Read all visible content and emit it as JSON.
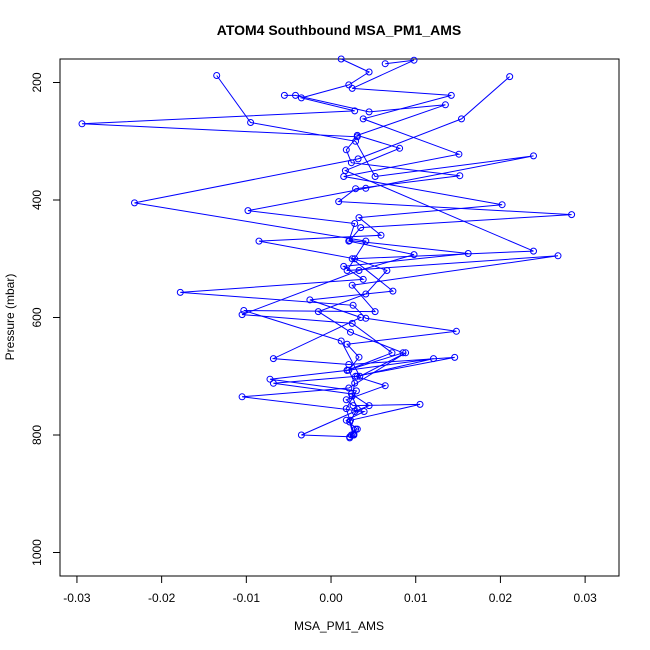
{
  "chart_data": {
    "type": "line",
    "title": "ATOM4 Southbound MSA_PM1_AMS",
    "xlabel": "MSA_PM1_AMS",
    "ylabel": "Pressure (mbar)",
    "xlim": [
      -0.032,
      0.034
    ],
    "ylim": [
      1040,
      160
    ],
    "y_inverted": true,
    "grid": false,
    "legend": "none",
    "x_ticks": [
      -0.03,
      -0.02,
      -0.01,
      0.0,
      0.01,
      0.02,
      0.03
    ],
    "x_tick_labels": [
      "-0.03",
      "-0.02",
      "-0.01",
      "0.00",
      "0.01",
      "0.02",
      "0.03"
    ],
    "y_ticks": [
      200,
      400,
      600,
      800,
      1000
    ],
    "y_tick_labels": [
      "200",
      "400",
      "600",
      "800",
      "1000"
    ],
    "marker": "open-circle",
    "line_color": "#0000ff",
    "series": [
      {
        "x": [
          0.0012,
          0.0045,
          0.0021,
          -0.0035,
          0.0028,
          -0.0294,
          0.0031,
          0.0018,
          0.0024,
          0.0152,
          0.0029,
          0.0009,
          0.0284,
          0.0035,
          0.0022,
          0.0162,
          0.0015,
          0.0038,
          -0.0178,
          0.0026,
          0.0041,
          0.0148,
          0.0019,
          0.0033,
          0.0021,
          0.0028,
          0.0025,
          0.0031,
          0.0022,
          0.0026
        ]
      },
      {
        "x": [
          0.0211,
          0.0154,
          0.0032,
          -0.0232,
          0.0041,
          0.0019,
          0.0268,
          0.0025,
          0.0052,
          -0.0103,
          0.0012,
          0.0034,
          0.0088,
          0.0021,
          -0.0105,
          0.0039,
          0.0018,
          0.0031,
          0.0024,
          0.0029,
          0.0022,
          0.0027
        ],
        "y": [
          190,
          262,
          330,
          405,
          470,
          520,
          495,
          545,
          590,
          588,
          640,
          700,
          660,
          720,
          735,
          760,
          775,
          790,
          800,
          790,
          805,
          800
        ]
      },
      {
        "x": [
          -0.0135,
          -0.0095,
          0.0029,
          0.0052,
          0.0239,
          0.0041,
          -0.0098,
          0.0028,
          0.0021,
          0.0098,
          0.0033,
          -0.0105,
          0.0025,
          0.0072,
          0.0019,
          0.0121,
          0.0031,
          -0.0068,
          0.0024,
          0.0045,
          0.0028,
          -0.0035,
          0.0022
        ],
        "y": [
          188,
          268,
          300,
          360,
          325,
          380,
          418,
          440,
          470,
          493,
          520,
          595,
          610,
          660,
          690,
          670,
          700,
          712,
          730,
          750,
          760,
          800,
          803
        ]
      },
      {
        "x": [
          -0.0055,
          -0.0042,
          0.0045,
          0.0135,
          0.0031,
          0.0081,
          0.0017,
          0.0239,
          0.0025,
          0.0073,
          -0.0025,
          0.0035,
          -0.0068,
          0.0021,
          0.0146,
          0.0029,
          0.0064,
          0.0018,
          0.0026,
          0.0105,
          0.0023
        ],
        "y": [
          222,
          222,
          250,
          238,
          290,
          312,
          350,
          487,
          500,
          555,
          570,
          600,
          670,
          680,
          668,
          700,
          716,
          740,
          750,
          748,
          775
        ]
      },
      {
        "x": [
          0.0064,
          0.0098,
          0.0025,
          0.0142,
          0.0038,
          0.0151,
          0.0015,
          0.0202,
          0.0033,
          0.0059,
          -0.0085,
          0.0028,
          0.0066,
          0.0041,
          -0.0015,
          0.0023,
          0.0085,
          0.0019,
          -0.0072,
          0.003,
          0.0018,
          0.0027
        ],
        "y": [
          168,
          162,
          210,
          222,
          262,
          322,
          360,
          408,
          430,
          460,
          470,
          500,
          520,
          560,
          590,
          625,
          660,
          690,
          705,
          725,
          755,
          798
        ]
      }
    ]
  }
}
